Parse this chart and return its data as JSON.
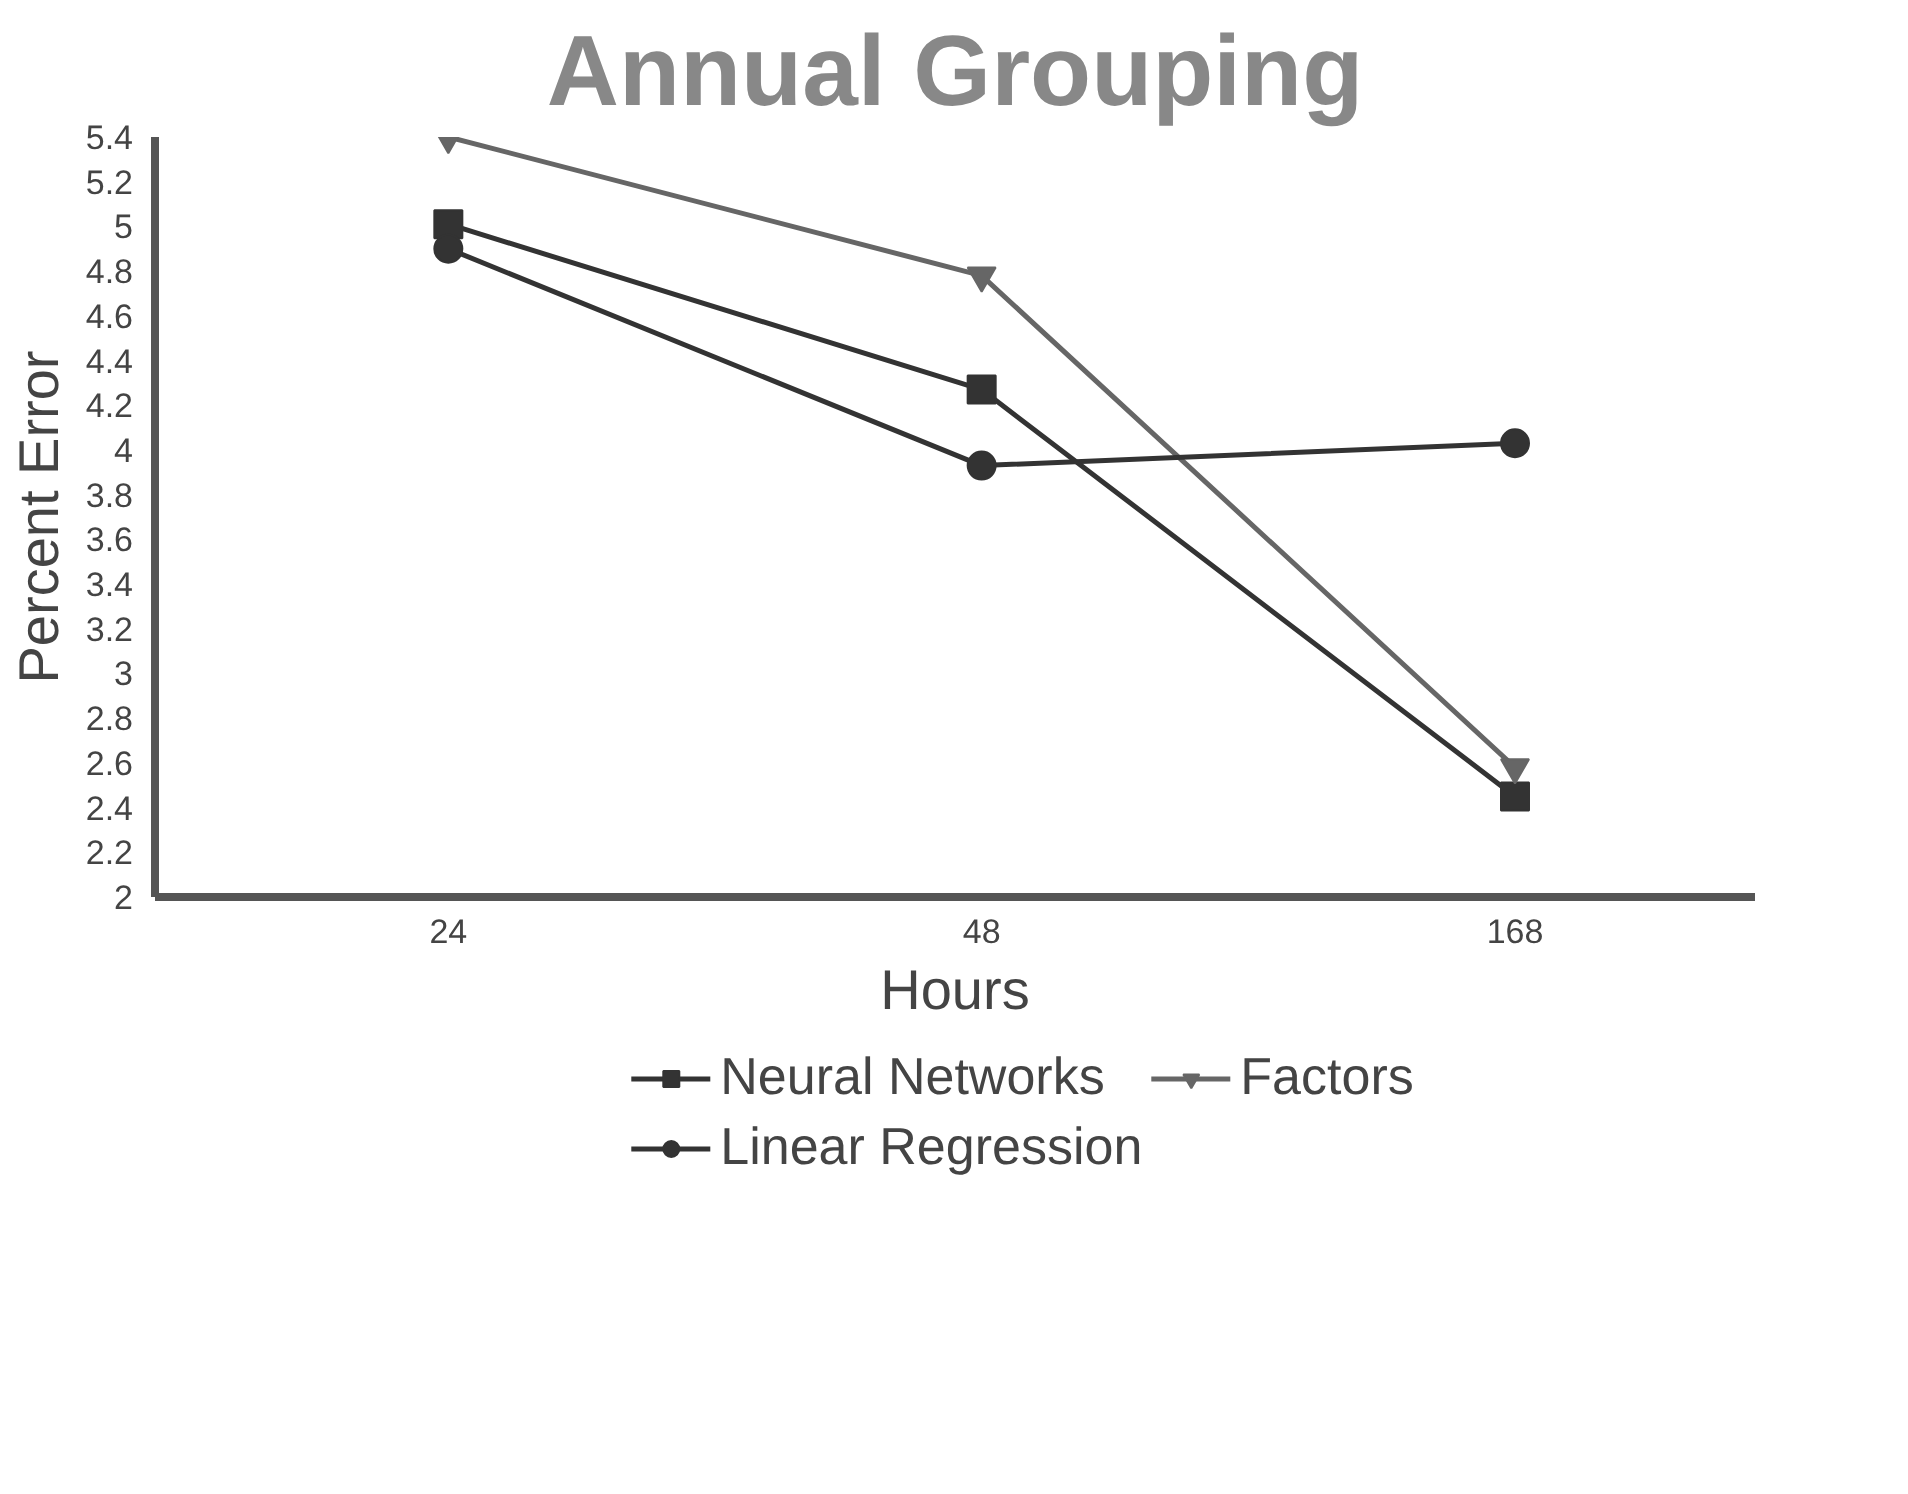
{
  "chart_data": {
    "type": "line",
    "title": "Annual Grouping",
    "xlabel": "Hours",
    "ylabel": "Percent Error",
    "categories": [
      "24",
      "48",
      "168"
    ],
    "series": [
      {
        "name": "Neural Networks",
        "color": "#333333",
        "marker": "square",
        "values": [
          5.01,
          4.27,
          2.45
        ]
      },
      {
        "name": "Factors",
        "color": "#666666",
        "marker": "triangle",
        "values": [
          5.4,
          4.78,
          2.58
        ]
      },
      {
        "name": "Linear Regression",
        "color": "#333333",
        "marker": "circle",
        "values": [
          4.9,
          3.93,
          4.03
        ]
      }
    ],
    "ylim": [
      2,
      5.4
    ],
    "yticks": [
      2,
      2.2,
      2.4,
      2.6,
      2.8,
      3,
      3.2,
      3.4,
      3.6,
      3.8,
      4,
      4.2,
      4.4,
      4.6,
      4.8,
      5,
      5.2,
      5.4
    ],
    "grid": false,
    "legend": "bottom",
    "line_style": "solid"
  }
}
